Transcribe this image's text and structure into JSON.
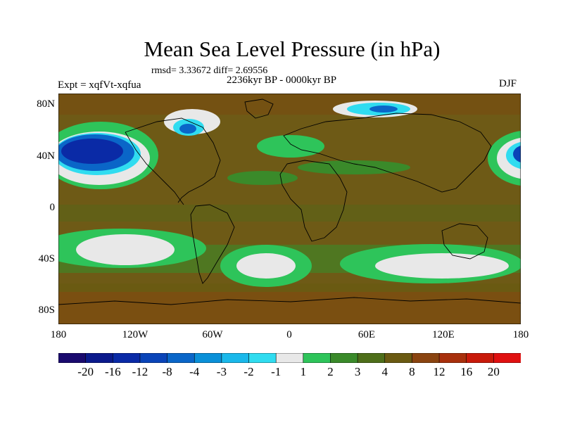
{
  "title": "Mean Sea Level Pressure (in hPa)",
  "stats": "rmsd= 3.33672  diff= 2.69556",
  "period": "2236kyr BP - 0000kyr BP",
  "experiment": "Expt = xqfVt-xqfua",
  "season": "DJF",
  "lat_labels": [
    "80N",
    "40N",
    "0",
    "40S",
    "80S"
  ],
  "lon_labels": [
    "180",
    "120W",
    "60W",
    "0",
    "60E",
    "120E",
    "180"
  ],
  "colorbar": {
    "labels": [
      "-20",
      "-16",
      "-12",
      "-8",
      "-4",
      "-3",
      "-2",
      "-1",
      "1",
      "2",
      "3",
      "4",
      "8",
      "12",
      "16",
      "20"
    ],
    "colors": [
      "#1a0a6e",
      "#0b1a8c",
      "#0a2aa6",
      "#0a44b8",
      "#0a66c8",
      "#0a90d8",
      "#1ab8ea",
      "#30dcf0",
      "#e8e8e8",
      "#2ec45a",
      "#3a8a2a",
      "#4e6e1a",
      "#6a5a12",
      "#8a4410",
      "#a8300c",
      "#c81a0a",
      "#e01010"
    ]
  },
  "map_colors": {
    "land_sea_base": "#6e5a16",
    "green_2": "#2ec45a",
    "green_3": "#3a8a2a",
    "olive_4": "#4e6e1a",
    "brown_8": "#6a5a12",
    "brown_12": "#8a4410",
    "white_neutral": "#e8e8e8",
    "blue_deep": "#0a2aa6",
    "blue_mid": "#0a66c8",
    "cyan": "#30dcf0"
  }
}
